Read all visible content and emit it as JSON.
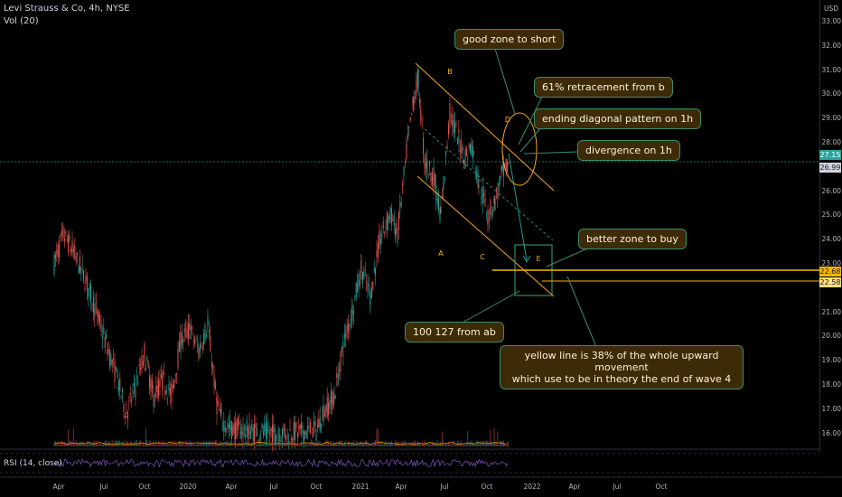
{
  "header": {
    "symbol": "Levi Strauss & Co, 4h, NYSE",
    "volume": "Vol (20)"
  },
  "price_axis": {
    "currency": "USD",
    "ticks": [
      "33.00",
      "32.00",
      "31.00",
      "30.00",
      "29.00",
      "28.00",
      "26.00",
      "25.00",
      "24.00",
      "23.00",
      "21.00",
      "20.00",
      "19.00",
      "18.00",
      "17.00",
      "16.00"
    ],
    "last_price": "26.99",
    "crosshair_price": "27.15",
    "level_a": "22.68",
    "level_b": "22.58"
  },
  "time_axis": {
    "ticks": [
      "Apr",
      "Jul",
      "Oct",
      "2020",
      "Apr",
      "Jul",
      "Oct",
      "2021",
      "Apr",
      "Jul",
      "Oct",
      "2022",
      "Apr",
      "Jul",
      "Oct"
    ]
  },
  "waves": {
    "a": "A",
    "b": "B",
    "c": "C",
    "d": "D",
    "e": "E"
  },
  "annotations": {
    "short_zone": "good zone to short",
    "retracement": "61% retracement from b",
    "ending_diagonal": "ending diagonal pattern on 1h",
    "divergence": "divergence on 1h",
    "buy_zone": "better zone to buy",
    "fib": "100 127 from ab",
    "yellow_line_1": "yellow line is 38% of the whole upward movement",
    "yellow_line_2": "which use to be in theory the end of wave 4"
  },
  "rsi": {
    "label": "RSI (14, close)"
  },
  "colors": {
    "up": "#26a69a",
    "down": "#ef5350",
    "channel": "#f5a623",
    "yellow_line": "#f5b800",
    "rsi": "#7e57c2",
    "annotation_bg": "#3d2a06",
    "annotation_border": "#3a8e6e"
  }
}
